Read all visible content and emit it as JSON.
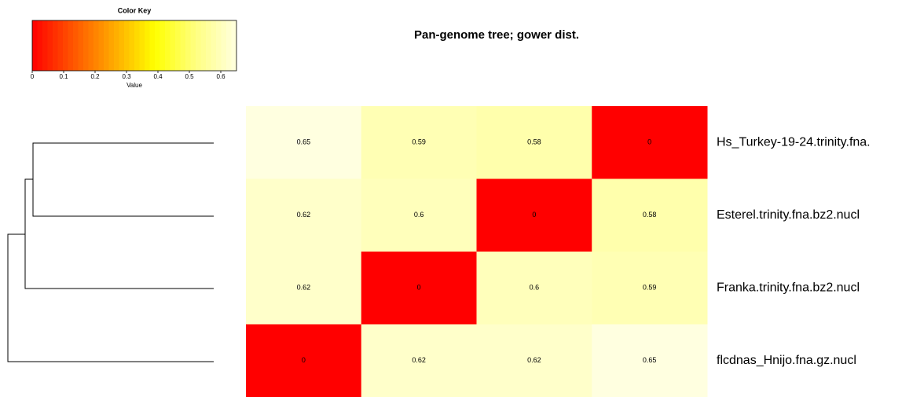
{
  "chart_data": {
    "type": "heatmap",
    "title": "Pan-genome tree;  gower dist.",
    "rows": [
      "Hs_Turkey-19-24.trinity.fna.",
      "Esterel.trinity.fna.bz2.nucl",
      "Franka.trinity.fna.bz2.nucl",
      "flcdnas_Hnijo.fna.gz.nucl"
    ],
    "values": [
      [
        0.65,
        0.59,
        0.58,
        0
      ],
      [
        0.62,
        0.6,
        0,
        0.58
      ],
      [
        0.62,
        0,
        0.6,
        0.59
      ],
      [
        0,
        0.62,
        0.62,
        0.65
      ]
    ],
    "colors": [
      "#ff0000",
      "#ff5500",
      "#ffaa00",
      "#ffff00",
      "#ffff80",
      "#ffffe0"
    ],
    "color_key": {
      "title": "Color Key",
      "xlabel": "Value",
      "xlim": [
        0,
        0.65
      ],
      "xticks": [
        0,
        0.1,
        0.2,
        0.3,
        0.4,
        0.5,
        0.6
      ]
    }
  }
}
